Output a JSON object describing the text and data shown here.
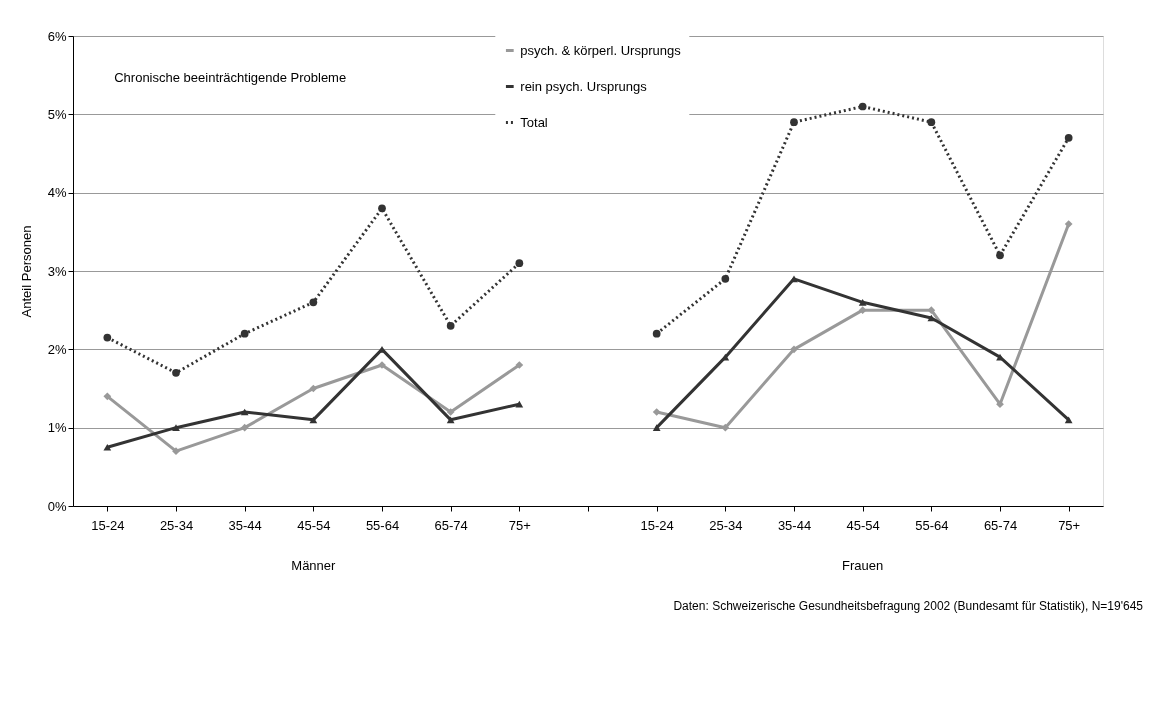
{
  "chart_data": {
    "type": "line",
    "categories": [
      "15-24",
      "25-34",
      "35-44",
      "45-54",
      "55-64",
      "65-74",
      "75+",
      null,
      "15-24",
      "25-34",
      "35-44",
      "45-54",
      "55-64",
      "65-74",
      "75+"
    ],
    "series": [
      {
        "name": "psych. & körperl. Ursprungs",
        "color": "#999999",
        "marker": "diamond",
        "line_style": "solid",
        "values": [
          1.4,
          0.7,
          1.0,
          1.5,
          1.8,
          1.2,
          1.8,
          null,
          1.2,
          1.0,
          2.0,
          2.5,
          2.5,
          1.3,
          3.6
        ]
      },
      {
        "name": "rein psych. Ursprungs",
        "color": "#333333",
        "marker": "triangle",
        "line_style": "solid",
        "values": [
          0.75,
          1.0,
          1.2,
          1.1,
          2.0,
          1.1,
          1.3,
          null,
          1.0,
          1.9,
          2.9,
          2.6,
          2.4,
          1.9,
          1.1
        ]
      },
      {
        "name": "Total",
        "color": "#333333",
        "marker": "circle",
        "line_style": "dotted",
        "values": [
          2.15,
          1.7,
          2.2,
          2.6,
          3.8,
          2.3,
          3.1,
          null,
          2.2,
          2.9,
          4.9,
          5.1,
          4.9,
          3.2,
          4.7
        ]
      }
    ],
    "ylabel": "Anteil Personen",
    "ylim": [
      0,
      6
    ],
    "yticks": [
      {
        "value": 0,
        "label": "0%"
      },
      {
        "value": 1,
        "label": "1%"
      },
      {
        "value": 2,
        "label": "2%"
      },
      {
        "value": 3,
        "label": "3%"
      },
      {
        "value": 4,
        "label": "4%"
      },
      {
        "value": 5,
        "label": "5%"
      },
      {
        "value": 6,
        "label": "6%"
      }
    ],
    "grid": "y",
    "legend": "top",
    "annotations": [
      "Chronische beeinträchtigende Probleme",
      "Männer",
      "Frauen",
      "Daten: Schweizerische Gesundheitsbefragung 2002 (Bundesamt für Statistik), N=19'645"
    ]
  }
}
